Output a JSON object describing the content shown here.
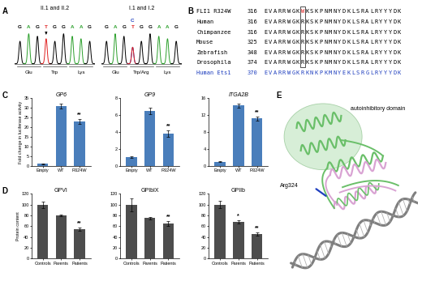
{
  "panel_labels": [
    "A",
    "B",
    "C",
    "D",
    "E"
  ],
  "panels": {
    "A": {
      "base_colors": {
        "G": "#000000",
        "A": "#2ca02c",
        "T": "#e02020",
        "C": "#1f3fbf"
      },
      "traces": [
        {
          "title": "II.1 and II.2",
          "bases": [
            [
              "G"
            ],
            [
              "A"
            ],
            [
              "G"
            ],
            [
              "T"
            ],
            [
              "G"
            ],
            [
              "G"
            ],
            [
              "A"
            ],
            [
              "A"
            ],
            [
              "G"
            ]
          ],
          "codons": [
            "Glu",
            "Trp",
            "Lys"
          ]
        },
        {
          "title": "I.1 and I.2",
          "bases": [
            [
              "G"
            ],
            [
              "A"
            ],
            [
              "G"
            ],
            [
              "C",
              "T"
            ],
            [
              "G"
            ],
            [
              "G"
            ],
            [
              "A"
            ],
            [
              "A"
            ],
            [
              "G"
            ]
          ],
          "codons": [
            "Glu",
            "Trp/Arg",
            "Lys"
          ]
        }
      ]
    },
    "B": {
      "mutation_color": "#e02020",
      "rows": [
        {
          "name": "FLI1 R324W",
          "start": 316,
          "sequence": "EVARRWGKWKSKPNMNYDKLSRALRYYYDK"
        },
        {
          "name": "Human",
          "start": 316,
          "sequence": "EVARRWGKRKSKPNMNYDKLSRALRYYYDK"
        },
        {
          "name": "Chimpanzee",
          "start": 316,
          "sequence": "EVARRWGKRKSKPNMNYDKLSRALRYYYDK"
        },
        {
          "name": "Mouse",
          "start": 325,
          "sequence": "EVARRWGKRKSKPNMNYDKLSRALRYYYDK"
        },
        {
          "name": "Zebrafish",
          "start": 348,
          "sequence": "EVARRWGKRKSKPNMNYDKLSRALRYYYDK"
        },
        {
          "name": "Drosophila",
          "start": 374,
          "sequence": "EVARRWGKRKSKPNMNYDKLSRALRYYYDK"
        },
        {
          "name": "Human Ets1",
          "start": 370,
          "sequence": "EVARRWGKRKNKPKMNYEKLSRGLRYYYDK",
          "color": "#1f3fbf"
        }
      ]
    },
    "E": {
      "domain_label": "autoinhibitory domain",
      "residue_label": "Arg324"
    }
  },
  "chart_data": [
    {
      "type": "bar",
      "title": "GP6",
      "y_label": "Fold change in luciferase activity",
      "categories": [
        "Empty",
        "WT",
        "R324W"
      ],
      "values": [
        1,
        31,
        23
      ],
      "errors": [
        0.2,
        1.2,
        1.3
      ],
      "color": "#4a7ebb",
      "ylim": [
        0,
        35
      ],
      "yticks": [
        0,
        5,
        10,
        15,
        20,
        25,
        30,
        35
      ],
      "annotations": [
        {
          "category": "R324W",
          "text": "**"
        }
      ]
    },
    {
      "type": "bar",
      "title": "GP9",
      "categories": [
        "Empty",
        "WT",
        "R324W"
      ],
      "values": [
        1,
        6.5,
        3.8
      ],
      "errors": [
        0.1,
        0.4,
        0.4
      ],
      "color": "#4a7ebb",
      "ylim": [
        0,
        8
      ],
      "yticks": [
        0,
        2,
        4,
        6,
        8
      ],
      "annotations": [
        {
          "category": "R324W",
          "text": "**"
        }
      ]
    },
    {
      "type": "bar",
      "title": "ITGA2B",
      "categories": [
        "Empty",
        "WT",
        "R324W"
      ],
      "values": [
        1,
        14.3,
        11.2
      ],
      "errors": [
        0.1,
        0.5,
        0.4
      ],
      "color": "#4a7ebb",
      "ylim": [
        0,
        16
      ],
      "yticks": [
        0,
        4,
        8,
        12,
        16
      ],
      "annotations": [
        {
          "category": "R324W",
          "text": "**"
        }
      ]
    },
    {
      "type": "bar",
      "title": "GPVI",
      "y_label": "Protein content",
      "categories": [
        "Controls",
        "Parents",
        "Patients"
      ],
      "values": [
        100,
        80,
        55
      ],
      "errors": [
        6,
        1.5,
        3
      ],
      "color": "#4d4d4d",
      "ylim": [
        0,
        120
      ],
      "yticks": [
        0,
        20,
        40,
        60,
        80,
        100,
        120
      ],
      "annotations": [
        {
          "category": "Patients",
          "text": "**"
        }
      ]
    },
    {
      "type": "bar",
      "title": "GPIbIX",
      "categories": [
        "Controls",
        "Parents",
        "Patients"
      ],
      "values": [
        100,
        75,
        65
      ],
      "errors": [
        12,
        2,
        5
      ],
      "color": "#4d4d4d",
      "ylim": [
        0,
        120
      ],
      "yticks": [
        0,
        20,
        40,
        60,
        80,
        100,
        120
      ],
      "annotations": [
        {
          "category": "Patients",
          "text": "**"
        }
      ]
    },
    {
      "type": "bar",
      "title": "GPIIb",
      "categories": [
        "Controls",
        "Parents",
        "Patients"
      ],
      "values": [
        100,
        68,
        45
      ],
      "errors": [
        7,
        3,
        3
      ],
      "color": "#4d4d4d",
      "ylim": [
        0,
        120
      ],
      "yticks": [
        0,
        20,
        40,
        60,
        80,
        100,
        120
      ],
      "annotations": [
        {
          "category": "Parents",
          "text": "*"
        },
        {
          "category": "Patients",
          "text": "**"
        }
      ]
    }
  ]
}
